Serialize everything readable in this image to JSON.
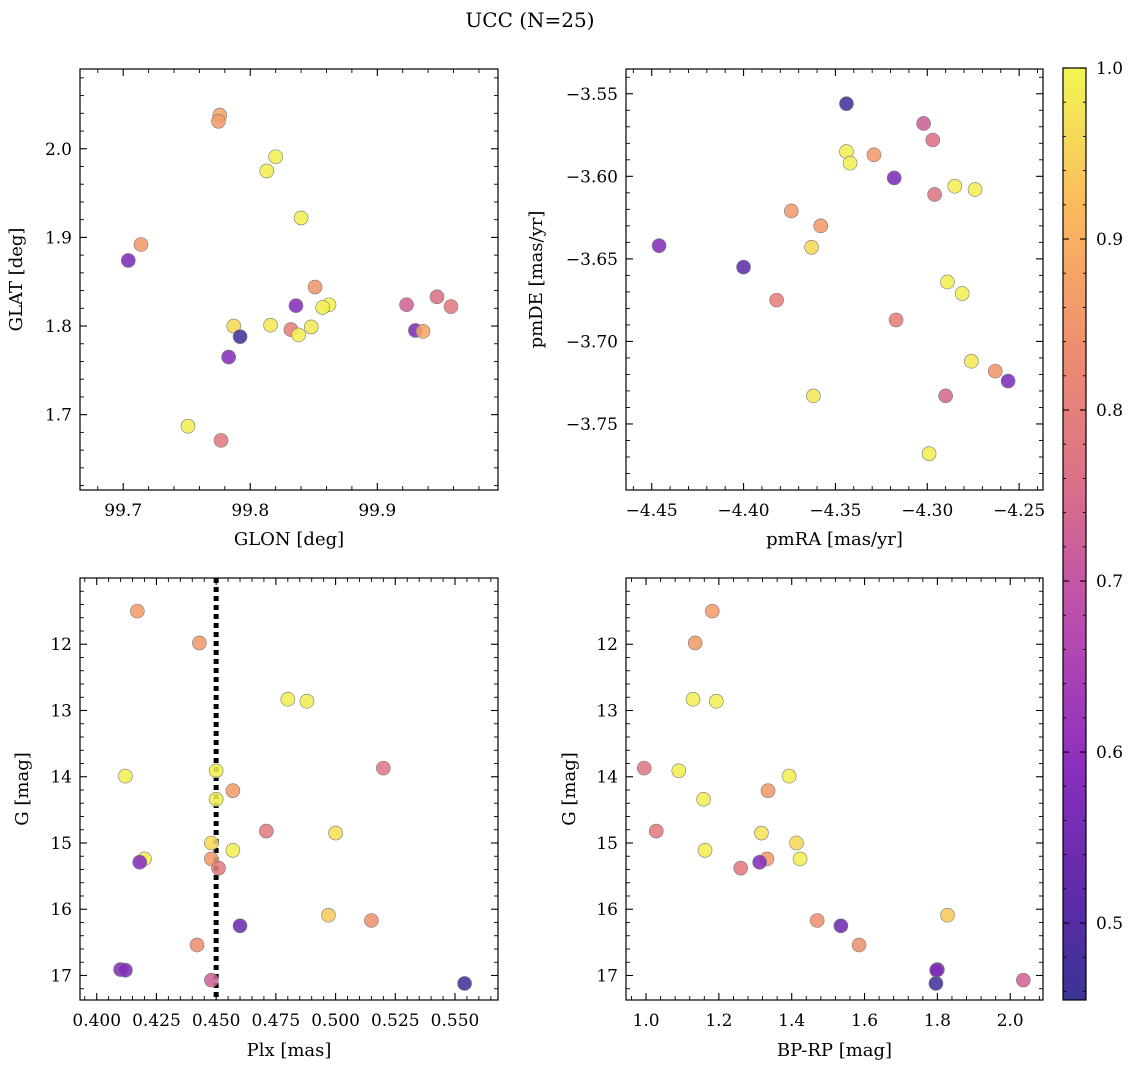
{
  "chart_data": {
    "title": "UCC (N=25)",
    "colorbar": {
      "colormap": "plasma",
      "range": [
        0.455,
        1.0
      ],
      "ticks": [
        0.5,
        0.6,
        0.7,
        0.8,
        0.9,
        1.0
      ],
      "tick_labels": [
        "0.5",
        "0.6",
        "0.7",
        "0.8",
        "0.9",
        "1.0"
      ]
    },
    "panels": [
      {
        "id": "glon-glat",
        "type": "scatter",
        "xlabel": "GLON [deg]",
        "ylabel": "GLAT [deg]",
        "xlim": [
          99.666,
          99.995
        ],
        "ylim": [
          1.615,
          2.09
        ],
        "invert_y": false,
        "xticks": [
          99.7,
          99.8,
          99.9
        ],
        "xtick_labels": [
          "99.7",
          "99.8",
          "99.9"
        ],
        "yticks": [
          1.7,
          1.8,
          1.9,
          2.0
        ],
        "ytick_labels": [
          "1.7",
          "1.8",
          "1.9",
          "2.0"
        ],
        "points": [
          {
            "x": 99.776,
            "y": 2.038,
            "c": 0.88
          },
          {
            "x": 99.775,
            "y": 2.031,
            "c": 0.86
          },
          {
            "x": 99.82,
            "y": 1.991,
            "c": 0.99
          },
          {
            "x": 99.813,
            "y": 1.975,
            "c": 0.99
          },
          {
            "x": 99.84,
            "y": 1.922,
            "c": 0.99
          },
          {
            "x": 99.714,
            "y": 1.892,
            "c": 0.86
          },
          {
            "x": 99.704,
            "y": 1.874,
            "c": 0.57
          },
          {
            "x": 99.851,
            "y": 1.844,
            "c": 0.85
          },
          {
            "x": 99.947,
            "y": 1.833,
            "c": 0.76
          },
          {
            "x": 99.923,
            "y": 1.824,
            "c": 0.73
          },
          {
            "x": 99.862,
            "y": 1.824,
            "c": 0.99
          },
          {
            "x": 99.836,
            "y": 1.823,
            "c": 0.58
          },
          {
            "x": 99.857,
            "y": 1.821,
            "c": 0.99
          },
          {
            "x": 99.958,
            "y": 1.822,
            "c": 0.79
          },
          {
            "x": 99.816,
            "y": 1.801,
            "c": 0.98
          },
          {
            "x": 99.787,
            "y": 1.8,
            "c": 0.96
          },
          {
            "x": 99.848,
            "y": 1.799,
            "c": 0.98
          },
          {
            "x": 99.832,
            "y": 1.796,
            "c": 0.8
          },
          {
            "x": 99.93,
            "y": 1.795,
            "c": 0.57
          },
          {
            "x": 99.936,
            "y": 1.794,
            "c": 0.88
          },
          {
            "x": 99.838,
            "y": 1.79,
            "c": 0.99
          },
          {
            "x": 99.792,
            "y": 1.788,
            "c": 0.47
          },
          {
            "x": 99.783,
            "y": 1.765,
            "c": 0.58
          },
          {
            "x": 99.751,
            "y": 1.687,
            "c": 0.99
          },
          {
            "x": 99.777,
            "y": 1.671,
            "c": 0.79
          }
        ]
      },
      {
        "id": "pmra-pmde",
        "type": "scatter",
        "xlabel": "pmRA [mas/yr]",
        "ylabel": "pmDE [mas/yr]",
        "xlim": [
          -4.464,
          -4.237
        ],
        "ylim": [
          -3.79,
          -3.535
        ],
        "invert_y": false,
        "xticks": [
          -4.45,
          -4.4,
          -4.35,
          -4.3,
          -4.25
        ],
        "xtick_labels": [
          "−4.45",
          "−4.40",
          "−4.35",
          "−4.30",
          "−4.25"
        ],
        "yticks": [
          -3.75,
          -3.7,
          -3.65,
          -3.6,
          -3.55
        ],
        "ytick_labels": [
          "−3.75",
          "−3.70",
          "−3.65",
          "−3.60",
          "−3.55"
        ],
        "points": [
          {
            "x": -4.344,
            "y": -3.556,
            "c": 0.47
          },
          {
            "x": -4.302,
            "y": -3.568,
            "c": 0.72
          },
          {
            "x": -4.297,
            "y": -3.578,
            "c": 0.76
          },
          {
            "x": -4.344,
            "y": -3.585,
            "c": 0.99
          },
          {
            "x": -4.329,
            "y": -3.587,
            "c": 0.86
          },
          {
            "x": -4.342,
            "y": -3.592,
            "c": 0.99
          },
          {
            "x": -4.318,
            "y": -3.601,
            "c": 0.57
          },
          {
            "x": -4.285,
            "y": -3.606,
            "c": 0.99
          },
          {
            "x": -4.274,
            "y": -3.608,
            "c": 0.99
          },
          {
            "x": -4.296,
            "y": -3.611,
            "c": 0.77
          },
          {
            "x": -4.374,
            "y": -3.621,
            "c": 0.86
          },
          {
            "x": -4.358,
            "y": -3.63,
            "c": 0.86
          },
          {
            "x": -4.446,
            "y": -3.642,
            "c": 0.58
          },
          {
            "x": -4.363,
            "y": -3.643,
            "c": 0.96
          },
          {
            "x": -4.4,
            "y": -3.655,
            "c": 0.52
          },
          {
            "x": -4.289,
            "y": -3.664,
            "c": 0.99
          },
          {
            "x": -4.281,
            "y": -3.671,
            "c": 0.99
          },
          {
            "x": -4.382,
            "y": -3.675,
            "c": 0.8
          },
          {
            "x": -4.317,
            "y": -3.687,
            "c": 0.8
          },
          {
            "x": -4.276,
            "y": -3.712,
            "c": 0.98
          },
          {
            "x": -4.263,
            "y": -3.718,
            "c": 0.85
          },
          {
            "x": -4.256,
            "y": -3.724,
            "c": 0.57
          },
          {
            "x": -4.362,
            "y": -3.733,
            "c": 0.98
          },
          {
            "x": -4.29,
            "y": -3.733,
            "c": 0.74
          },
          {
            "x": -4.299,
            "y": -3.768,
            "c": 0.99
          }
        ]
      },
      {
        "id": "plx-g",
        "type": "scatter",
        "xlabel": "Plx [mas]",
        "ylabel": "G [mag]",
        "xlim": [
          0.393,
          0.568
        ],
        "ylim": [
          17.37,
          11.0
        ],
        "invert_y": true,
        "vline": {
          "x": 0.45,
          "style": "dotted",
          "color": "#000000"
        },
        "xticks": [
          0.4,
          0.425,
          0.45,
          0.475,
          0.5,
          0.525,
          0.55
        ],
        "xtick_labels": [
          "0.400",
          "0.425",
          "0.450",
          "0.475",
          "0.500",
          "0.525",
          "0.550"
        ],
        "yticks": [
          12,
          13,
          14,
          15,
          16,
          17
        ],
        "ytick_labels": [
          "12",
          "13",
          "14",
          "15",
          "16",
          "17"
        ],
        "points": [
          {
            "x": 0.417,
            "y": 11.5,
            "c": 0.86
          },
          {
            "x": 0.443,
            "y": 11.98,
            "c": 0.86
          },
          {
            "x": 0.48,
            "y": 12.83,
            "c": 0.99
          },
          {
            "x": 0.488,
            "y": 12.86,
            "c": 0.99
          },
          {
            "x": 0.52,
            "y": 13.87,
            "c": 0.78
          },
          {
            "x": 0.45,
            "y": 13.91,
            "c": 0.99
          },
          {
            "x": 0.412,
            "y": 13.99,
            "c": 0.99
          },
          {
            "x": 0.457,
            "y": 14.21,
            "c": 0.86
          },
          {
            "x": 0.45,
            "y": 14.34,
            "c": 0.99
          },
          {
            "x": 0.471,
            "y": 14.82,
            "c": 0.79
          },
          {
            "x": 0.5,
            "y": 14.85,
            "c": 0.97
          },
          {
            "x": 0.448,
            "y": 15.0,
            "c": 0.96
          },
          {
            "x": 0.457,
            "y": 15.11,
            "c": 0.99
          },
          {
            "x": 0.448,
            "y": 15.24,
            "c": 0.86
          },
          {
            "x": 0.42,
            "y": 15.24,
            "c": 0.99
          },
          {
            "x": 0.418,
            "y": 15.29,
            "c": 0.58
          },
          {
            "x": 0.451,
            "y": 15.38,
            "c": 0.79
          },
          {
            "x": 0.497,
            "y": 16.09,
            "c": 0.94
          },
          {
            "x": 0.515,
            "y": 16.17,
            "c": 0.84
          },
          {
            "x": 0.46,
            "y": 16.25,
            "c": 0.54
          },
          {
            "x": 0.442,
            "y": 16.54,
            "c": 0.84
          },
          {
            "x": 0.41,
            "y": 16.91,
            "c": 0.58
          },
          {
            "x": 0.412,
            "y": 16.92,
            "c": 0.57
          },
          {
            "x": 0.448,
            "y": 17.07,
            "c": 0.73
          },
          {
            "x": 0.554,
            "y": 17.12,
            "c": 0.47
          }
        ]
      },
      {
        "id": "bprp-g",
        "type": "scatter",
        "xlabel": "BP-RP [mag]",
        "ylabel": "G [mag]",
        "xlim": [
          0.945,
          2.09
        ],
        "ylim": [
          17.37,
          11.0
        ],
        "invert_y": true,
        "xticks": [
          1.0,
          1.2,
          1.4,
          1.6,
          1.8,
          2.0
        ],
        "xtick_labels": [
          "1.0",
          "1.2",
          "1.4",
          "1.6",
          "1.8",
          "2.0"
        ],
        "yticks": [
          12,
          13,
          14,
          15,
          16,
          17
        ],
        "ytick_labels": [
          "12",
          "13",
          "14",
          "15",
          "16",
          "17"
        ],
        "points": [
          {
            "x": 1.182,
            "y": 11.5,
            "c": 0.86
          },
          {
            "x": 1.135,
            "y": 11.98,
            "c": 0.86
          },
          {
            "x": 1.129,
            "y": 12.83,
            "c": 0.99
          },
          {
            "x": 1.193,
            "y": 12.86,
            "c": 0.99
          },
          {
            "x": 0.995,
            "y": 13.87,
            "c": 0.78
          },
          {
            "x": 1.09,
            "y": 13.91,
            "c": 0.99
          },
          {
            "x": 1.393,
            "y": 13.99,
            "c": 0.99
          },
          {
            "x": 1.335,
            "y": 14.21,
            "c": 0.86
          },
          {
            "x": 1.158,
            "y": 14.34,
            "c": 0.99
          },
          {
            "x": 1.028,
            "y": 14.82,
            "c": 0.79
          },
          {
            "x": 1.317,
            "y": 14.85,
            "c": 0.97
          },
          {
            "x": 1.413,
            "y": 15.0,
            "c": 0.96
          },
          {
            "x": 1.162,
            "y": 15.11,
            "c": 0.99
          },
          {
            "x": 1.332,
            "y": 15.24,
            "c": 0.86
          },
          {
            "x": 1.423,
            "y": 15.24,
            "c": 0.99
          },
          {
            "x": 1.312,
            "y": 15.29,
            "c": 0.58
          },
          {
            "x": 1.26,
            "y": 15.38,
            "c": 0.79
          },
          {
            "x": 1.828,
            "y": 16.09,
            "c": 0.94
          },
          {
            "x": 1.47,
            "y": 16.17,
            "c": 0.84
          },
          {
            "x": 1.535,
            "y": 16.25,
            "c": 0.54
          },
          {
            "x": 1.585,
            "y": 16.54,
            "c": 0.84
          },
          {
            "x": 1.8,
            "y": 16.91,
            "c": 0.58
          },
          {
            "x": 1.798,
            "y": 16.92,
            "c": 0.57
          },
          {
            "x": 2.036,
            "y": 17.07,
            "c": 0.73
          },
          {
            "x": 1.796,
            "y": 17.12,
            "c": 0.47
          }
        ]
      }
    ]
  }
}
